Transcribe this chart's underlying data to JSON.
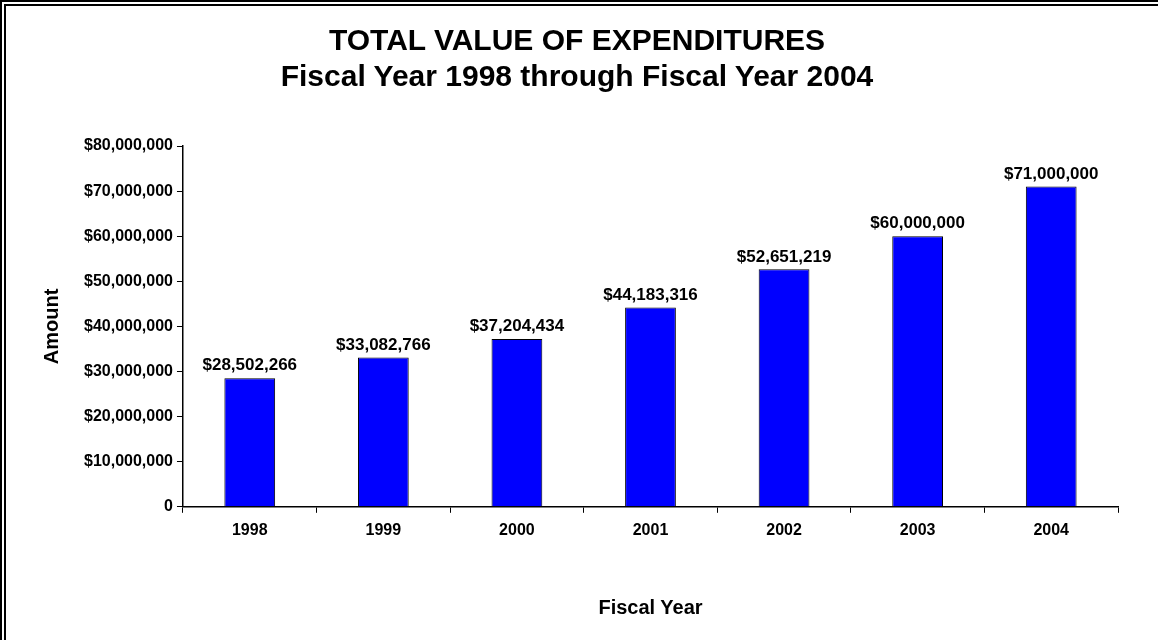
{
  "chart_data": {
    "type": "bar",
    "title": "TOTAL VALUE OF EXPENDITURES",
    "subtitle": "Fiscal Year 1998 through Fiscal Year 2004",
    "xlabel": "Fiscal Year",
    "ylabel": "Amount",
    "categories": [
      "1998",
      "1999",
      "2000",
      "2001",
      "2002",
      "2003",
      "2004"
    ],
    "values": [
      28502266,
      33082766,
      37204434,
      44183316,
      52651219,
      60000000,
      71000000
    ],
    "value_labels": [
      "$28,502,266",
      "$33,082,766",
      "$37,204,434",
      "$44,183,316",
      "$52,651,219",
      "$60,000,000",
      "$71,000,000"
    ],
    "color": "#0000ff",
    "ylim": [
      0,
      80000000
    ],
    "yticks": [
      0,
      {
        "value": 10000000,
        "label": "$10,000,000"
      },
      {
        "value": 20000000,
        "label": "$20,000,000"
      },
      {
        "value": 30000000,
        "label": "$30,000,000"
      },
      {
        "value": 40000000,
        "label": "$40,000,000"
      },
      {
        "value": 50000000,
        "label": "$50,000,000"
      },
      {
        "value": 60000000,
        "label": "$60,000,000"
      },
      {
        "value": 70000000,
        "label": "$70,000,000"
      },
      {
        "value": 80000000,
        "label": "$80,000,000"
      }
    ],
    "grid": false,
    "legend": false
  }
}
